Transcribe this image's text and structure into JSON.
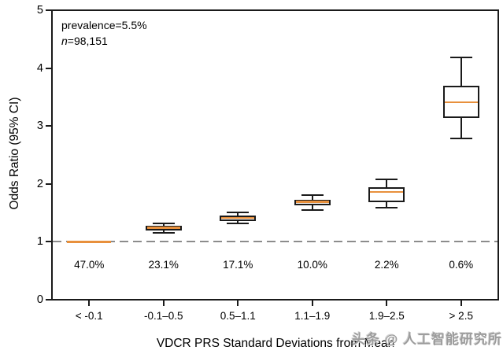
{
  "annotation": {
    "prevalence": "prevalence=5.5%",
    "n_prefix": "n",
    "n_value": "=98,151"
  },
  "watermark": {
    "text": "头条 @ 人工智能研究所"
  },
  "chart_data": {
    "type": "box",
    "title": "",
    "xlabel": "VDCR PRS Standard Deviations from Mean",
    "ylabel": "Odds Ratio (95% CI)",
    "ylim": [
      0,
      5
    ],
    "yticks": [
      0,
      1,
      2,
      3,
      4,
      5
    ],
    "grid": false,
    "legend": "none",
    "categories": [
      "< -0.1",
      "-0.1–0.5",
      "0.5–1.1",
      "1.1–1.9",
      "1.9–2.5",
      "> 2.5"
    ],
    "group_percentages": [
      "47.0%",
      "23.1%",
      "17.1%",
      "10.0%",
      "2.2%",
      "0.6%"
    ],
    "reference_line_y": 1.0,
    "boxes": [
      {
        "category": "< -0.1",
        "type": "reference",
        "median": 1.0
      },
      {
        "category": "-0.1–0.5",
        "type": "box",
        "whisker_low": 1.15,
        "q1": 1.2,
        "median": 1.24,
        "q3": 1.28,
        "whisker_high": 1.32
      },
      {
        "category": "0.5–1.1",
        "type": "box",
        "whisker_low": 1.32,
        "q1": 1.36,
        "median": 1.41,
        "q3": 1.45,
        "whisker_high": 1.51
      },
      {
        "category": "1.1–1.9",
        "type": "box",
        "whisker_low": 1.55,
        "q1": 1.63,
        "median": 1.69,
        "q3": 1.73,
        "whisker_high": 1.81
      },
      {
        "category": "1.9–2.5",
        "type": "box",
        "whisker_low": 1.59,
        "q1": 1.69,
        "median": 1.86,
        "q3": 1.94,
        "whisker_high": 2.08
      },
      {
        "category": "> 2.5",
        "type": "box",
        "whisker_low": 2.78,
        "q1": 3.14,
        "median": 3.41,
        "q3": 3.7,
        "whisker_high": 4.18
      }
    ],
    "colors": {
      "median": "#E8903C",
      "box_fill": "#FFFFFF",
      "box_border": "#1A1A1A",
      "reference_dash": "#8C8C8C",
      "text": "#000000"
    }
  }
}
